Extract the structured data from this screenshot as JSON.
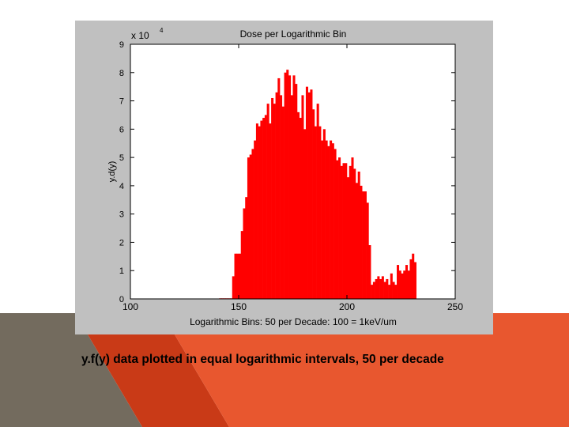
{
  "colors": {
    "bar": "#ff0000",
    "plot_bg": "#ffffff",
    "figure_bg": "#c0c0c0",
    "deco_orange": "#e8572f",
    "deco_darkorange": "#c93a17",
    "deco_gray": "#736b5e"
  },
  "caption": "y.f(y) data plotted in equal logarithmic intervals, 50  per decade",
  "chart_data": {
    "type": "bar",
    "title": "Dose per Logarithmic Bin",
    "xlabel": "Logarithmic Bins: 50 per Decade: 100 = 1keV/um",
    "ylabel": "y.d(y)",
    "y_multiplier": "x 10",
    "y_exponent": "4",
    "xlim": [
      100,
      250
    ],
    "ylim": [
      0,
      9
    ],
    "xticks": [
      100,
      150,
      200,
      250
    ],
    "yticks": [
      0,
      1,
      2,
      3,
      4,
      5,
      6,
      7,
      8,
      9
    ],
    "grid": false,
    "legend": "none",
    "x": [
      141,
      142,
      143,
      144,
      145,
      146,
      147,
      148,
      149,
      150,
      151,
      152,
      153,
      154,
      155,
      156,
      157,
      158,
      159,
      160,
      161,
      162,
      163,
      164,
      165,
      166,
      167,
      168,
      169,
      170,
      171,
      172,
      173,
      174,
      175,
      176,
      177,
      178,
      179,
      180,
      181,
      182,
      183,
      184,
      185,
      186,
      187,
      188,
      189,
      190,
      191,
      192,
      193,
      194,
      195,
      196,
      197,
      198,
      199,
      200,
      201,
      202,
      203,
      204,
      205,
      206,
      207,
      208,
      209,
      210,
      211,
      212,
      213,
      214,
      215,
      216,
      217,
      218,
      219,
      220,
      221,
      222,
      223,
      224,
      225,
      226,
      227,
      228,
      229,
      230,
      231
    ],
    "values": [
      0.02,
      0.02,
      0.02,
      0.02,
      0.02,
      0.02,
      0.8,
      1.6,
      1.6,
      1.6,
      2.4,
      3.2,
      3.6,
      5.0,
      5.1,
      5.3,
      5.6,
      6.2,
      6.1,
      6.3,
      6.4,
      6.5,
      6.9,
      6.2,
      7.1,
      6.9,
      7.3,
      7.8,
      7.2,
      6.8,
      8.0,
      8.1,
      7.9,
      7.2,
      7.9,
      7.6,
      6.6,
      6.4,
      7.2,
      6.0,
      7.5,
      7.3,
      7.4,
      6.7,
      6.1,
      6.9,
      6.1,
      5.6,
      6.0,
      5.6,
      5.4,
      5.6,
      5.5,
      5.3,
      4.9,
      5.0,
      4.7,
      4.8,
      4.8,
      4.3,
      4.7,
      5.0,
      4.6,
      4.1,
      4.5,
      4.0,
      3.8,
      3.8,
      3.4,
      1.9,
      0.5,
      0.6,
      0.7,
      0.8,
      0.7,
      0.8,
      0.6,
      0.7,
      0.5,
      0.9,
      0.6,
      0.5,
      1.2,
      1.0,
      0.9,
      1.0,
      1.2,
      1.0,
      1.4,
      1.6,
      1.3
    ]
  }
}
